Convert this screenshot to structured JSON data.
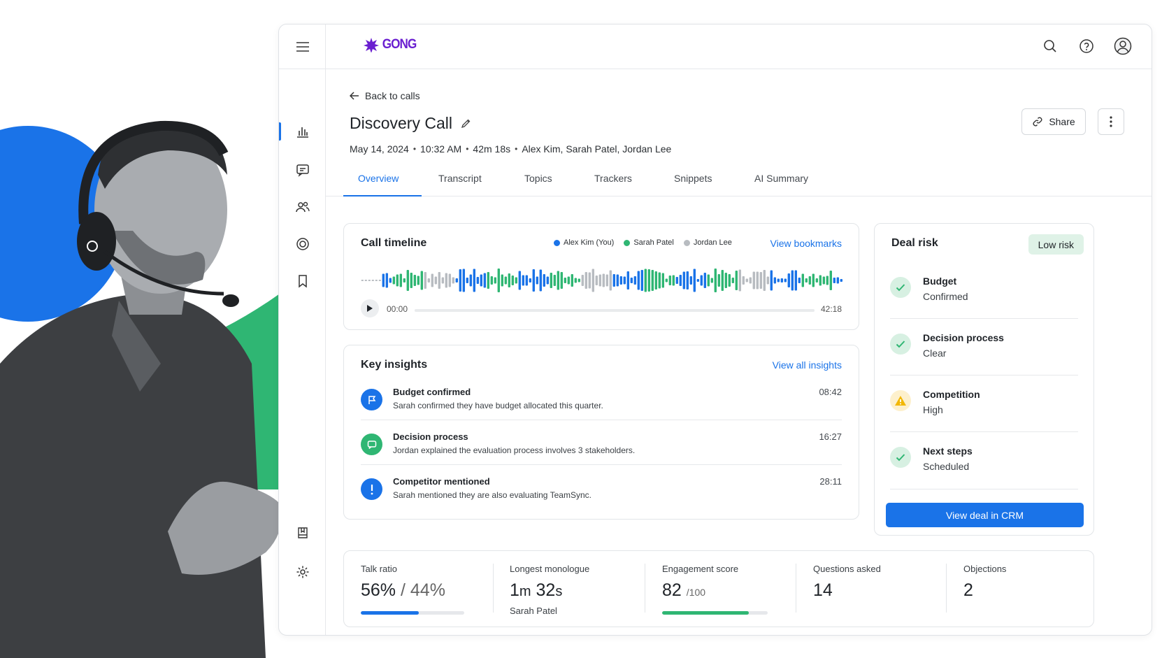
{
  "app": {
    "logo_text": "GONG"
  },
  "rail": {
    "menu_icon": "hamburger-icon",
    "items": [
      {
        "icon": "bar-chart-icon",
        "active": true
      },
      {
        "icon": "chat-icon",
        "active": false
      },
      {
        "icon": "people-icon",
        "active": false
      },
      {
        "icon": "target-icon",
        "active": false
      },
      {
        "icon": "bookmark-icon",
        "active": false
      },
      {
        "icon": "library-icon",
        "active": false
      },
      {
        "icon": "settings-icon",
        "active": false
      }
    ]
  },
  "header": {
    "icons": [
      "search-icon",
      "help-icon",
      "user-avatar-icon"
    ]
  },
  "back_link": "Back to calls",
  "call": {
    "title": "Discovery Call",
    "date": "May 14, 2024",
    "time": "10:32 AM",
    "duration": "42m 18s",
    "participants": "Alex Kim, Sarah Patel, Jordan Lee"
  },
  "actions": {
    "share": "Share"
  },
  "tabs": [
    "Overview",
    "Transcript",
    "Topics",
    "Trackers",
    "Snippets",
    "AI Summary"
  ],
  "active_tab": "Overview",
  "timeline": {
    "title": "Call timeline",
    "legend": [
      {
        "name": "Alex Kim (You)",
        "color": "#1a73e8"
      },
      {
        "name": "Sarah Patel",
        "color": "#2fb673"
      },
      {
        "name": "Jordan Lee",
        "color": "#b8bcc1"
      }
    ],
    "link": "View bookmarks",
    "start": "00:00",
    "end": "42:18"
  },
  "insights": {
    "title": "Key insights",
    "link": "View all insights",
    "items": [
      {
        "title": "Budget confirmed",
        "desc": "Sarah confirmed they have budget allocated this quarter.",
        "time": "08:42",
        "icon": "flag-icon",
        "color": "#1a73e8"
      },
      {
        "title": "Decision process",
        "desc": "Jordan explained the evaluation process involves 3 stakeholders.",
        "time": "16:27",
        "icon": "chat-bubble-icon",
        "color": "#2fb673"
      },
      {
        "title": "Competitor mentioned",
        "desc": "Sarah mentioned they are also evaluating TeamSync.",
        "time": "28:11",
        "icon": "exclamation-icon",
        "color": "#1a73e8"
      }
    ]
  },
  "deal_risk": {
    "title": "Deal risk",
    "badge": "Low risk",
    "items": [
      {
        "title": "Budget",
        "status": "Confirmed",
        "icon": "check-icon"
      },
      {
        "title": "Decision process",
        "status": "Clear",
        "icon": "check-icon"
      },
      {
        "title": "Competition",
        "status": "High",
        "icon": "warning-icon"
      },
      {
        "title": "Next steps",
        "status": "Scheduled",
        "icon": "check-icon"
      }
    ],
    "button": "View deal in CRM"
  },
  "stats": {
    "talk_ratio": {
      "label": "Talk ratio",
      "value": "56%",
      "sep": " / ",
      "other": "44%",
      "progress": 0.56
    },
    "monologue": {
      "label": "Longest monologue",
      "value_m": "1",
      "unit_m": "m",
      "value_s": "32",
      "unit_s": "s",
      "sub": "Sarah Patel"
    },
    "engagement": {
      "label": "Engagement score",
      "value": "82",
      "suffix": "/100",
      "progress": 0.82
    },
    "questions": {
      "label": "Questions asked",
      "value": "14"
    },
    "objections": {
      "label": "Objections",
      "value": "2"
    }
  },
  "colors": {
    "accent": "#1a73e8",
    "green": "#2fb673",
    "warning": "#f2b705"
  }
}
